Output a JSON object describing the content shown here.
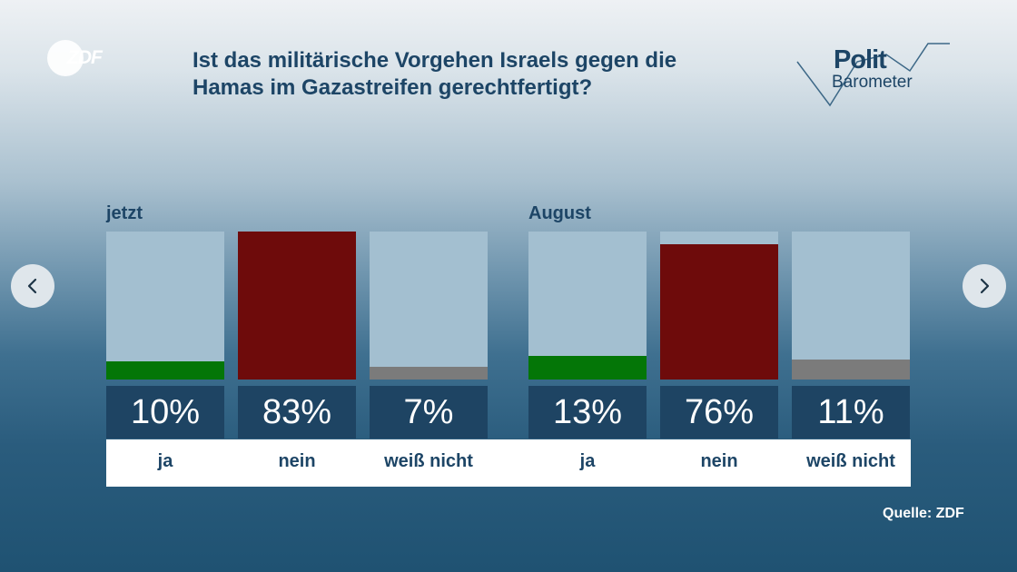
{
  "brand": {
    "logo_text": "ZDF"
  },
  "title": "Ist das militärische Vorgehen Israels gegen die Hamas im Gazastreifen gerechtfertigt?",
  "politbarometer": {
    "line1": "Polit",
    "line2": "Barometer"
  },
  "navigation": {
    "prev_icon": "chevron-left-icon",
    "next_icon": "chevron-right-icon"
  },
  "source": "Quelle: ZDF",
  "colors": {
    "ja": "#047607",
    "nein": "#6e0b0b",
    "weiss_nicht": "#7b7b7b",
    "bar_bg": "#a3bfd0",
    "value_box": "#1e4463"
  },
  "chart_data": [
    {
      "type": "bar",
      "group_label": "jetzt",
      "categories": [
        "ja",
        "nein",
        "weiß nicht"
      ],
      "values": [
        10,
        83,
        7
      ],
      "value_labels": [
        "10%",
        "83%",
        "7%"
      ],
      "ylim": [
        0,
        100
      ],
      "unit": "%"
    },
    {
      "type": "bar",
      "group_label": "August",
      "categories": [
        "ja",
        "nein",
        "weiß nicht"
      ],
      "values": [
        13,
        76,
        11
      ],
      "value_labels": [
        "13%",
        "76%",
        "11%"
      ],
      "ylim": [
        0,
        100
      ],
      "unit": "%"
    }
  ]
}
